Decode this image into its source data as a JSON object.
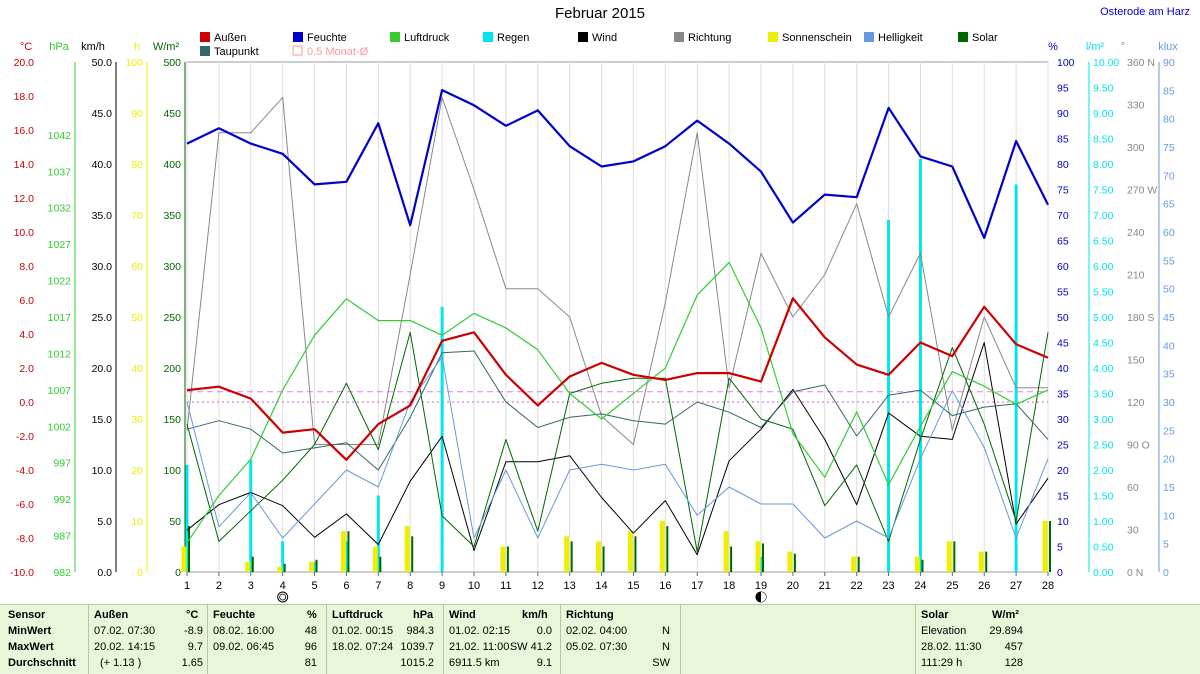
{
  "header": {
    "title": "Februar 2015",
    "location": "Osterode am Harz"
  },
  "chart_data": {
    "type": "line",
    "title": "Februar 2015",
    "x": [
      1,
      2,
      3,
      4,
      5,
      6,
      7,
      8,
      9,
      10,
      11,
      12,
      13,
      14,
      15,
      16,
      17,
      18,
      19,
      20,
      21,
      22,
      23,
      24,
      25,
      26,
      27,
      28
    ],
    "legend": [
      {
        "label": "Außen",
        "color": "#cc0000"
      },
      {
        "label": "Feuchte",
        "color": "#0000cc"
      },
      {
        "label": "Luftdruck",
        "color": "#33cc33"
      },
      {
        "label": "Regen",
        "color": "#00e5ee"
      },
      {
        "label": "Wind",
        "color": "#000000"
      },
      {
        "label": "Richtung",
        "color": "#888888"
      },
      {
        "label": "Sonnenschein",
        "color": "#eeee00"
      },
      {
        "label": "Helligkeit",
        "color": "#6699dd"
      },
      {
        "label": "Solar",
        "color": "#006600"
      },
      {
        "label": "Taupunkt",
        "color": "#336666"
      },
      {
        "label": "0.5 Monat-Ø",
        "color": "#ff9999",
        "outline": true
      }
    ],
    "axes": [
      {
        "id": "temp",
        "unit": "°C",
        "color": "#cc0000",
        "min": -10,
        "max": 20,
        "step": 2,
        "decimals": 1
      },
      {
        "id": "press",
        "unit": "hPa",
        "color": "#33cc33",
        "min": 982,
        "max": 1052,
        "ticks": [
          982,
          987,
          992,
          997,
          1002,
          1007,
          1012,
          1017,
          1022,
          1027,
          1032,
          1037,
          1042
        ]
      },
      {
        "id": "wind",
        "unit": "km/h",
        "color": "#000000",
        "min": 0,
        "max": 50,
        "step": 5,
        "decimals": 1
      },
      {
        "id": "sun",
        "unit": "h",
        "color": "#eeee00",
        "min": 0,
        "max": 100,
        "step": 10
      },
      {
        "id": "solar",
        "unit": "W/m²",
        "color": "#006600",
        "min": 0,
        "max": 500,
        "step": 50
      },
      {
        "id": "hum",
        "unit": "%",
        "color": "#0000cc",
        "min": 0,
        "max": 100,
        "step": 5
      },
      {
        "id": "rain",
        "unit": "l/m²",
        "color": "#00e5ee",
        "min": 0,
        "max": 10,
        "step": 0.5,
        "decimals": 2
      },
      {
        "id": "dir",
        "unit": "°",
        "color": "#888888",
        "min": 0,
        "max": 360,
        "ticks": [
          0,
          30,
          60,
          90,
          120,
          150,
          180,
          210,
          240,
          270,
          300,
          330,
          360
        ],
        "labels": {
          "0": "N",
          "90": "O",
          "180": "S",
          "270": "W",
          "360": "N"
        }
      },
      {
        "id": "lux",
        "unit": "klux",
        "color": "#6699dd",
        "min": 0,
        "max": 90,
        "step": 5
      }
    ],
    "series": [
      {
        "name": "Außen",
        "axis": "temp",
        "color": "#cc0000",
        "width": 2.2,
        "values": [
          0.7,
          0.9,
          0.2,
          -1.8,
          -1.6,
          -3.4,
          -1.3,
          -0.2,
          3.6,
          4.1,
          1.6,
          -0.2,
          1.5,
          2.3,
          1.6,
          1.3,
          1.7,
          1.7,
          1.2,
          6.1,
          3.8,
          2.2,
          1.6,
          3.5,
          2.7,
          5.6,
          3.4,
          2.6
        ]
      },
      {
        "name": "Feuchte",
        "axis": "hum",
        "color": "#0000cc",
        "width": 2.2,
        "values": [
          84,
          87,
          84,
          82,
          76,
          76.5,
          88,
          68,
          94.5,
          91.5,
          87.5,
          90.5,
          83.5,
          79.5,
          80.5,
          83.5,
          88.5,
          84,
          78.5,
          68.5,
          74,
          73.5,
          91,
          81.5,
          79.5,
          65.5,
          84.5,
          72
        ]
      },
      {
        "name": "Luftdruck",
        "axis": "press",
        "color": "#33cc33",
        "width": 1.2,
        "values": [
          986,
          992.5,
          997.5,
          1007,
          1014.5,
          1019.5,
          1016.5,
          1016.5,
          1014.5,
          1017.5,
          1015.5,
          1012.5,
          1006.5,
          1003,
          1006.5,
          1010,
          1020,
          1024.5,
          1015.5,
          1001,
          995,
          1004,
          994,
          1002,
          1009.5,
          1007.5,
          1005,
          1007
        ]
      },
      {
        "name": "Wind",
        "axis": "wind",
        "color": "#000000",
        "width": 1,
        "values": [
          4.1,
          6.6,
          7.8,
          6.5,
          3.4,
          5.7,
          2.7,
          8.9,
          13.3,
          2.1,
          10.8,
          10.8,
          11.4,
          7.3,
          3.8,
          7.0,
          1.7,
          10.9,
          14.0,
          17.9,
          13.0,
          6.6,
          15.6,
          13.3,
          13.0,
          22.5,
          4.7,
          9.2
        ]
      },
      {
        "name": "Richtung",
        "axis": "dir",
        "color": "#888888",
        "width": 1,
        "values": [
          100,
          310,
          310,
          335,
          90,
          90,
          90,
          210,
          335,
          270,
          200,
          200,
          180,
          110,
          90,
          190,
          310,
          130,
          225,
          180,
          210,
          260,
          180,
          225,
          100,
          180,
          130,
          130
        ]
      },
      {
        "name": "Solar",
        "axis": "solar",
        "color": "#006600",
        "width": 1,
        "values": [
          145,
          30,
          60,
          90,
          125,
          185,
          120,
          235,
          55,
          25,
          130,
          40,
          175,
          185,
          190,
          190,
          20,
          190,
          150,
          140,
          65,
          105,
          30,
          130,
          220,
          145,
          50,
          235
        ]
      },
      {
        "name": "Taupunkt",
        "axis": "temp",
        "color": "#336666",
        "width": 1,
        "values": [
          -1.6,
          -1.1,
          -1.6,
          -3.0,
          -2.7,
          -2.4,
          -4.0,
          -0.9,
          2.9,
          3.0,
          0.0,
          -1.5,
          -0.9,
          -0.7,
          -1.1,
          -1.3,
          -0.0,
          -0.6,
          -1.5,
          0.6,
          1.0,
          -2.0,
          0.4,
          0.7,
          -0.8,
          -0.3,
          -0.1,
          -2.2
        ]
      },
      {
        "name": "Helligkeit",
        "axis": "lux",
        "color": "#6699dd",
        "width": 1,
        "values": [
          30,
          8,
          14,
          6,
          12,
          18,
          15,
          30,
          38,
          6,
          18,
          6,
          18,
          19,
          18,
          19,
          10,
          15,
          12,
          12,
          6,
          9,
          6,
          20,
          32,
          22,
          6,
          20
        ]
      }
    ],
    "bars": [
      {
        "name": "Regen",
        "axis": "rain",
        "color": "#00e5ee",
        "width": 3,
        "offset": 0,
        "values": [
          2.1,
          0,
          2.2,
          0.6,
          0.2,
          0.6,
          1.5,
          0,
          5.2,
          0,
          0,
          0,
          0,
          0,
          0,
          0,
          0,
          0,
          0.3,
          0,
          0,
          0,
          6.9,
          8.1,
          0,
          0,
          7.6,
          0
        ]
      },
      {
        "name": "Sonnenschein",
        "axis": "sun",
        "color": "#eeee00",
        "width": 5,
        "offset": -3,
        "values": [
          5,
          0,
          2,
          1,
          2,
          8,
          5,
          9,
          0,
          0,
          5,
          0,
          7,
          6,
          8,
          10,
          0,
          8,
          6,
          4,
          0,
          3,
          0,
          3,
          6,
          4,
          0,
          10
        ]
      },
      {
        "name": "Solar",
        "axis": "solar",
        "color": "#006600",
        "width": 2,
        "offset": 2,
        "values": [
          45,
          0,
          15,
          8,
          12,
          40,
          15,
          35,
          0,
          0,
          25,
          0,
          30,
          25,
          35,
          45,
          0,
          25,
          28,
          18,
          0,
          15,
          0,
          12,
          30,
          20,
          0,
          50
        ]
      }
    ],
    "reference_lines": [
      {
        "axis": "temp",
        "value": 0.6,
        "color": "#ee77ee",
        "dash": "6,4"
      },
      {
        "axis": "temp",
        "value": 0.0,
        "color": "#cc66cc",
        "dash": "2,3"
      }
    ],
    "moon": [
      {
        "x": 4,
        "phase": "full"
      },
      {
        "x": 19,
        "phase": "new"
      }
    ]
  },
  "stats": {
    "sensor": {
      "title": "Sensor",
      "rows": [
        "MinWert",
        "MaxWert",
        "Durchschnitt"
      ]
    },
    "aussen": {
      "title": "Außen",
      "unit": "°C",
      "rows": [
        [
          "07.02.  07:30",
          "-8.9"
        ],
        [
          "20.02.  14:15",
          "9.7"
        ],
        [
          "(+ 1.13 )",
          "1.65"
        ]
      ]
    },
    "feuchte": {
      "title": "Feuchte",
      "unit": "%",
      "rows": [
        [
          "08.02.  16:00",
          "48"
        ],
        [
          "09.02.  06:45",
          "96"
        ],
        [
          "",
          "81"
        ]
      ]
    },
    "luftdruck": {
      "title": "Luftdruck",
      "unit": "hPa",
      "rows": [
        [
          "01.02.  00:15",
          "984.3"
        ],
        [
          "18.02.  07:24",
          "1039.7"
        ],
        [
          "",
          "1015.2"
        ]
      ]
    },
    "wind": {
      "title": "Wind",
      "unit": "km/h",
      "rows": [
        [
          "01.02.  02:15",
          "0.0"
        ],
        [
          "21.02.  11:00",
          "SW 41.2"
        ],
        [
          "6911.5 km",
          "9.1"
        ]
      ]
    },
    "richtung": {
      "title": "Richtung",
      "rows": [
        [
          "02.02.  04:00",
          "N"
        ],
        [
          "05.02.  07:30",
          "N"
        ],
        [
          "",
          "SW"
        ]
      ]
    },
    "solar": {
      "title": "Solar",
      "unit": "W/m²",
      "rows": [
        [
          "Elevation",
          "29.894"
        ],
        [
          "28.02.  11:30",
          "457"
        ],
        [
          "111:29 h",
          "128"
        ]
      ]
    }
  }
}
